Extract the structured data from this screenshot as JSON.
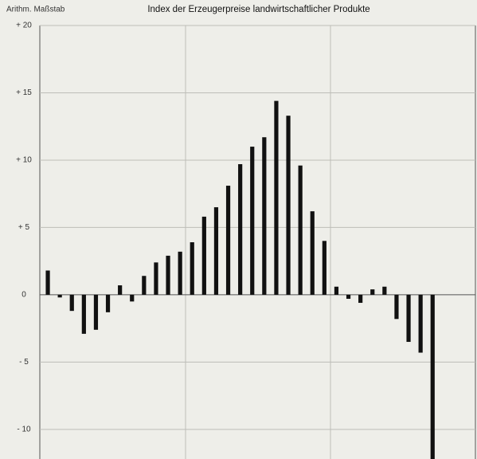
{
  "chart_data": {
    "type": "bar",
    "title": "Index der Erzeugerpreise landwirtschaftlicher Produkte",
    "y_axis_label": "Arithm. Maßstab",
    "categories": [
      null,
      null,
      null,
      null,
      null,
      null,
      null,
      null,
      null,
      null,
      null,
      null,
      null,
      null,
      null,
      null,
      null,
      null,
      null,
      null,
      null,
      null,
      null,
      null,
      null,
      null,
      null,
      null,
      null,
      null,
      null,
      null,
      null
    ],
    "values": [
      1.8,
      -0.2,
      -1.2,
      -2.9,
      -2.6,
      -1.3,
      0.7,
      -0.5,
      1.4,
      2.4,
      2.9,
      3.2,
      3.9,
      5.8,
      6.5,
      8.1,
      9.7,
      11.0,
      11.7,
      14.4,
      13.3,
      9.6,
      6.2,
      4.0,
      0.6,
      -0.3,
      -0.6,
      0.4,
      0.6,
      -1.8,
      -3.5,
      -4.3,
      -12.2
    ],
    "color": "#111111",
    "ylim": [
      -12.2,
      20
    ],
    "yticks": [
      {
        "value": 20,
        "label": "+ 20"
      },
      {
        "value": 15,
        "label": "+ 15"
      },
      {
        "value": 10,
        "label": "+ 10"
      },
      {
        "value": 5,
        "label": "+ 5"
      },
      0,
      {
        "value": -5,
        "label": "- 5"
      },
      {
        "value": -10,
        "label": "- 10"
      }
    ],
    "grid": true
  }
}
